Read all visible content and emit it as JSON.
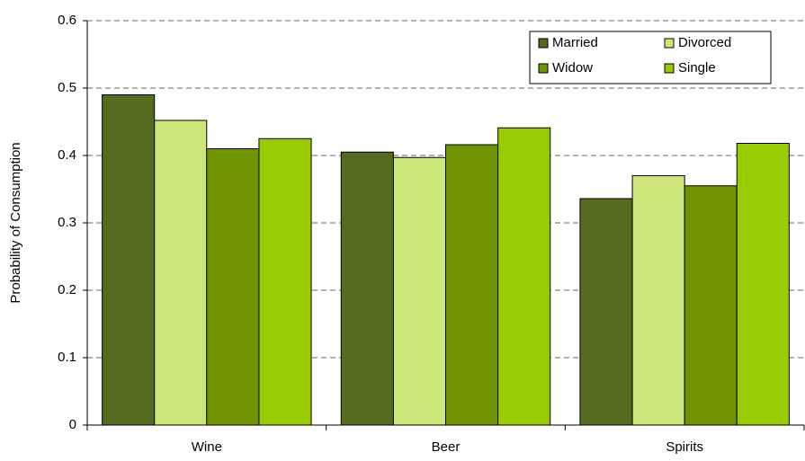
{
  "chart_data": {
    "type": "bar",
    "y_label": "Probability of Consumption",
    "categories": [
      "Wine",
      "Beer",
      "Spirits"
    ],
    "series": [
      {
        "name": "Married",
        "color": "#556b1f",
        "values": [
          0.49,
          0.405,
          0.336
        ]
      },
      {
        "name": "Divorced",
        "color": "#cce67a",
        "values": [
          0.452,
          0.397,
          0.37
        ]
      },
      {
        "name": "Widow",
        "color": "#6f9400",
        "values": [
          0.41,
          0.416,
          0.355
        ]
      },
      {
        "name": "Single",
        "color": "#99cc00",
        "values": [
          0.425,
          0.441,
          0.418
        ]
      }
    ],
    "ylim": [
      0,
      0.6
    ],
    "yticks": [
      0,
      0.1,
      0.2,
      0.3,
      0.4,
      0.5,
      0.6
    ],
    "grid": true,
    "legend": "upper right"
  }
}
